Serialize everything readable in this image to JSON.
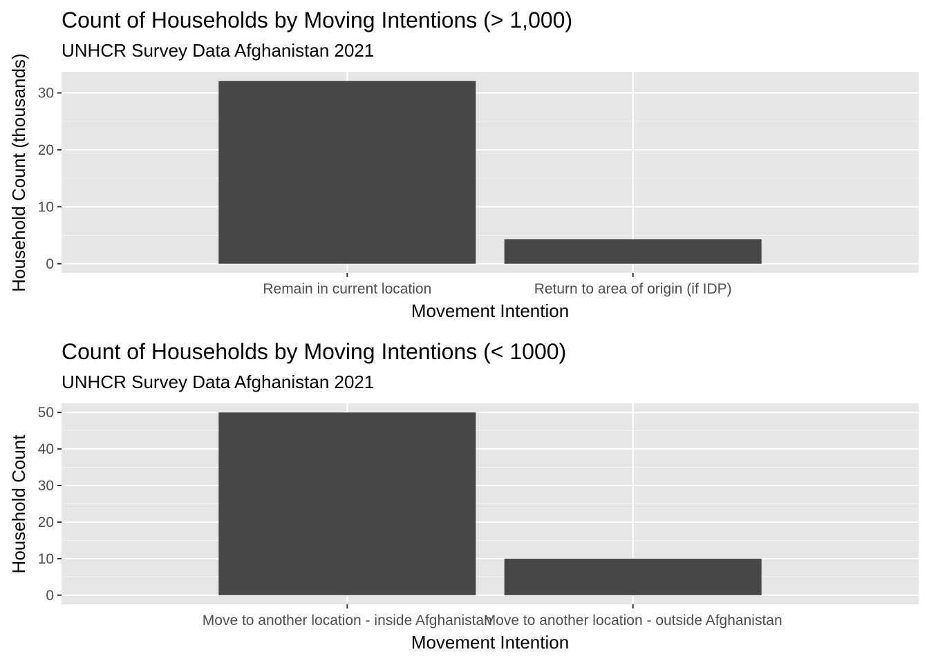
{
  "chart_data": [
    {
      "type": "bar",
      "title": "Count of Households by Moving Intentions (> 1,000)",
      "subtitle": "UNHCR Survey Data Afghanistan 2021",
      "xlabel": "Movement Intention",
      "ylabel": "Household Count (thousands)",
      "categories": [
        "Remain in current location",
        "Return to area of origin (if IDP)"
      ],
      "values": [
        32.1,
        4.3
      ],
      "ylim": [
        -1.6,
        33.7
      ],
      "yticks": [
        0,
        10,
        20,
        30
      ],
      "ytick_labels": [
        "0",
        "10",
        "20",
        "30"
      ],
      "grid": true,
      "bar_color": "#474747",
      "panel_color": "#e5e5e5"
    },
    {
      "type": "bar",
      "title": "Count of Households by Moving Intentions (< 1000)",
      "subtitle": "UNHCR Survey Data Afghanistan 2021",
      "xlabel": "Movement Intention",
      "ylabel": "Household Count",
      "categories": [
        "Move to another location - inside Afghanistan",
        "Move to another location - outside Afghanistan"
      ],
      "values": [
        50,
        10
      ],
      "ylim": [
        -2.5,
        52.5
      ],
      "yticks": [
        0,
        10,
        20,
        30,
        40,
        50
      ],
      "ytick_labels": [
        "0",
        "10",
        "20",
        "30",
        "40",
        "50"
      ],
      "grid": true,
      "bar_color": "#474747",
      "panel_color": "#e5e5e5"
    }
  ]
}
